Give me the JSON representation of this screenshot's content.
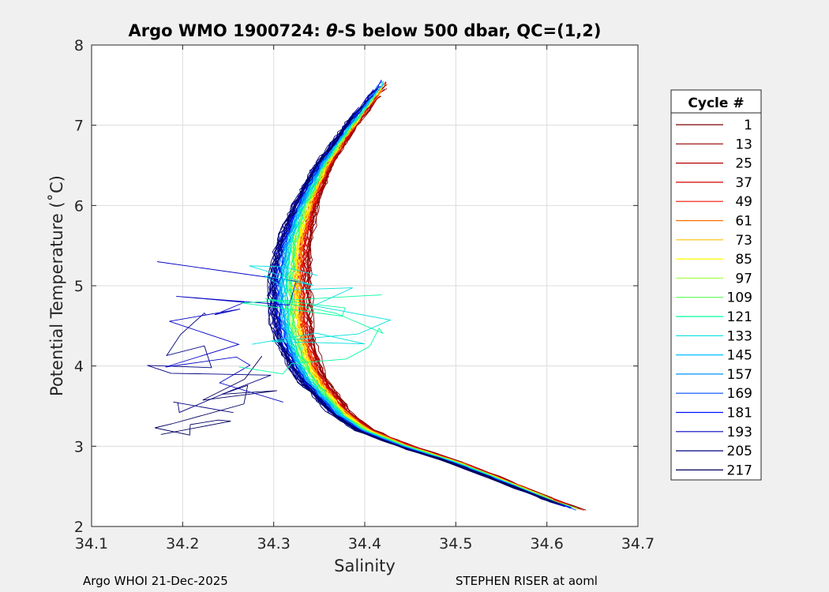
{
  "chart_data": {
    "type": "line",
    "title_parts": [
      "Argo WMO 1900724: ",
      "θ",
      "-S below 500 dbar,  QC=(1,2)"
    ],
    "xlabel": "Salinity",
    "ylabel": "Potential Temperature (˚C)",
    "xlim": [
      34.1,
      34.7
    ],
    "ylim": [
      2,
      8
    ],
    "xticks": [
      "34.1",
      "34.2",
      "34.3",
      "34.4",
      "34.5",
      "34.6",
      "34.7"
    ],
    "yticks": [
      "2",
      "3",
      "4",
      "5",
      "6",
      "7",
      "8"
    ],
    "grid": true,
    "legend_title": "Cycle #",
    "legend_position": "right-outside",
    "series": [
      {
        "name": "1",
        "color": "#7f0000"
      },
      {
        "name": "13",
        "color": "#960000"
      },
      {
        "name": "25",
        "color": "#b40000"
      },
      {
        "name": "37",
        "color": "#d20000"
      },
      {
        "name": "49",
        "color": "#f01000"
      },
      {
        "name": "61",
        "color": "#ff6a00"
      },
      {
        "name": "73",
        "color": "#ffbf00"
      },
      {
        "name": "85",
        "color": "#ffff00"
      },
      {
        "name": "97",
        "color": "#aaff55"
      },
      {
        "name": "109",
        "color": "#55ff55"
      },
      {
        "name": "121",
        "color": "#00ff9f"
      },
      {
        "name": "133",
        "color": "#00dfdf"
      },
      {
        "name": "145",
        "color": "#00bfff"
      },
      {
        "name": "157",
        "color": "#0095ff"
      },
      {
        "name": "169",
        "color": "#0050ff"
      },
      {
        "name": "181",
        "color": "#0010ff"
      },
      {
        "name": "193",
        "color": "#0000c4"
      },
      {
        "name": "205",
        "color": "#000080"
      },
      {
        "name": "217",
        "color": "#000060"
      }
    ],
    "profile_shape": {
      "theta": [
        2.15,
        2.35,
        2.6,
        2.8,
        3.0,
        3.2,
        3.4,
        3.6,
        3.8,
        4.0,
        4.3,
        4.6,
        5.0,
        5.5,
        6.0,
        6.5,
        7.0,
        7.5
      ],
      "salinity": [
        34.65,
        34.6,
        34.545,
        34.5,
        34.445,
        34.4,
        34.375,
        34.36,
        34.345,
        34.335,
        34.325,
        34.32,
        34.318,
        34.322,
        34.335,
        34.355,
        34.385,
        34.42
      ]
    }
  },
  "footer": {
    "left": "Argo WHOI 21-Dec-2025",
    "right": "STEPHEN RISER at aoml"
  }
}
